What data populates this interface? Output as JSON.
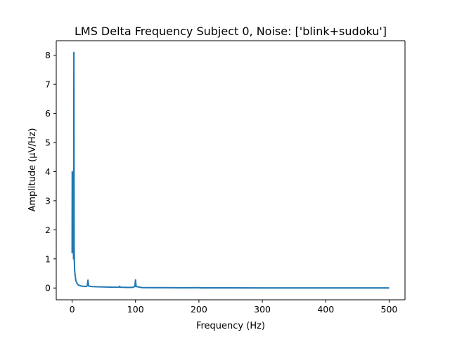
{
  "chart_data": {
    "type": "line",
    "title": "LMS Delta Frequency Subject 0, Noise: ['blink+sudoku']",
    "xlabel": "Frequency (Hz)",
    "ylabel": "Amplitude (µV/Hz)",
    "xlim": [
      -25,
      525
    ],
    "ylim": [
      -0.405,
      8.5
    ],
    "xticks": [
      0,
      100,
      200,
      300,
      400,
      500
    ],
    "yticks": [
      0,
      1,
      2,
      3,
      4,
      5,
      6,
      7,
      8
    ],
    "xtick_labels": [
      "0",
      "100",
      "200",
      "300",
      "400",
      "500"
    ],
    "ytick_labels": [
      "0",
      "1",
      "2",
      "3",
      "4",
      "5",
      "6",
      "7",
      "8"
    ],
    "grid": false,
    "legend": "none",
    "series": [
      {
        "color": "#1f77b4",
        "points": [
          [
            0,
            1.2
          ],
          [
            0.2,
            4.0
          ],
          [
            0.4,
            1.5
          ],
          [
            0.6,
            3.95
          ],
          [
            0.8,
            1.8
          ],
          [
            1.0,
            3.5
          ],
          [
            1.2,
            2.5
          ],
          [
            1.5,
            2.2
          ],
          [
            1.8,
            1.6
          ],
          [
            2.0,
            1.3
          ],
          [
            2.3,
            1.0
          ],
          [
            2.6,
            4.5
          ],
          [
            2.8,
            8.1
          ],
          [
            3.0,
            5.0
          ],
          [
            3.2,
            1.4
          ],
          [
            3.6,
            0.9
          ],
          [
            4.0,
            0.6
          ],
          [
            5.0,
            0.4
          ],
          [
            6.0,
            0.25
          ],
          [
            8.0,
            0.15
          ],
          [
            10,
            0.1
          ],
          [
            14,
            0.07
          ],
          [
            18,
            0.06
          ],
          [
            22,
            0.05
          ],
          [
            24,
            0.08
          ],
          [
            25,
            0.27
          ],
          [
            26,
            0.07
          ],
          [
            30,
            0.05
          ],
          [
            40,
            0.04
          ],
          [
            50,
            0.035
          ],
          [
            60,
            0.03
          ],
          [
            70,
            0.025
          ],
          [
            74,
            0.03
          ],
          [
            75,
            0.06
          ],
          [
            76,
            0.025
          ],
          [
            85,
            0.02
          ],
          [
            95,
            0.02
          ],
          [
            99,
            0.05
          ],
          [
            100,
            0.28
          ],
          [
            101,
            0.05
          ],
          [
            110,
            0.015
          ],
          [
            130,
            0.012
          ],
          [
            150,
            0.01
          ],
          [
            175,
            0.008
          ],
          [
            200,
            0.012
          ],
          [
            201,
            0.006
          ],
          [
            250,
            0.004
          ],
          [
            300,
            0.003
          ],
          [
            350,
            0.002
          ],
          [
            400,
            0.002
          ],
          [
            450,
            0.001
          ],
          [
            500,
            0.001
          ]
        ]
      }
    ]
  }
}
